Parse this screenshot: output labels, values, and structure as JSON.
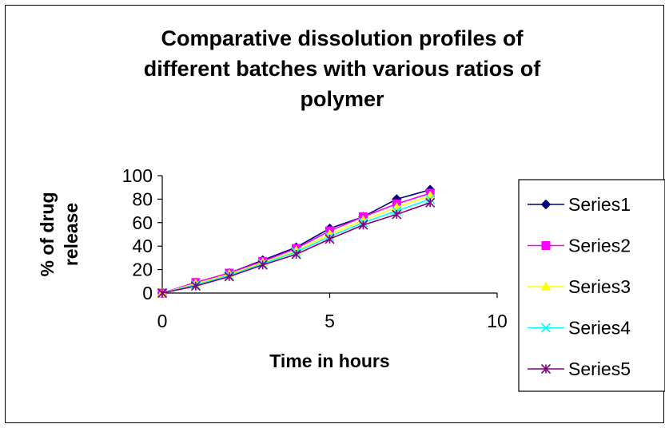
{
  "chart_data": {
    "type": "line",
    "title_lines": [
      "Comparative dissolution profiles of",
      "different batches with various ratios of",
      "polymer"
    ],
    "xlabel": "Time in hours",
    "ylabel_lines": [
      "% of drug",
      "release"
    ],
    "xlim": [
      0,
      10
    ],
    "ylim": [
      0,
      100
    ],
    "xticks": [
      "0",
      "5",
      "10"
    ],
    "yticks": [
      "0",
      "20",
      "40",
      "60",
      "80",
      "100"
    ],
    "grid": false,
    "legend_position": "right",
    "x": [
      0,
      1,
      2,
      3,
      4,
      5,
      6,
      7,
      8
    ],
    "series": [
      {
        "name": "Series1",
        "color": "#000080",
        "marker": "diamond",
        "values": [
          0,
          9,
          17,
          28,
          39,
          55,
          65,
          80,
          88
        ]
      },
      {
        "name": "Series2",
        "color": "#ff00ff",
        "marker": "square",
        "values": [
          0,
          9,
          17,
          27,
          38,
          53,
          65,
          76,
          85
        ]
      },
      {
        "name": "Series3",
        "color": "#ffff00",
        "marker": "triangle",
        "values": [
          0,
          8,
          16,
          26,
          36,
          50,
          62,
          73,
          83
        ]
      },
      {
        "name": "Series4",
        "color": "#00ffff",
        "marker": "x",
        "values": [
          0,
          7,
          15,
          25,
          35,
          48,
          60,
          70,
          80
        ]
      },
      {
        "name": "Series5",
        "color": "#800080",
        "marker": "star",
        "values": [
          0,
          6,
          14,
          24,
          33,
          46,
          58,
          67,
          77
        ]
      }
    ]
  }
}
